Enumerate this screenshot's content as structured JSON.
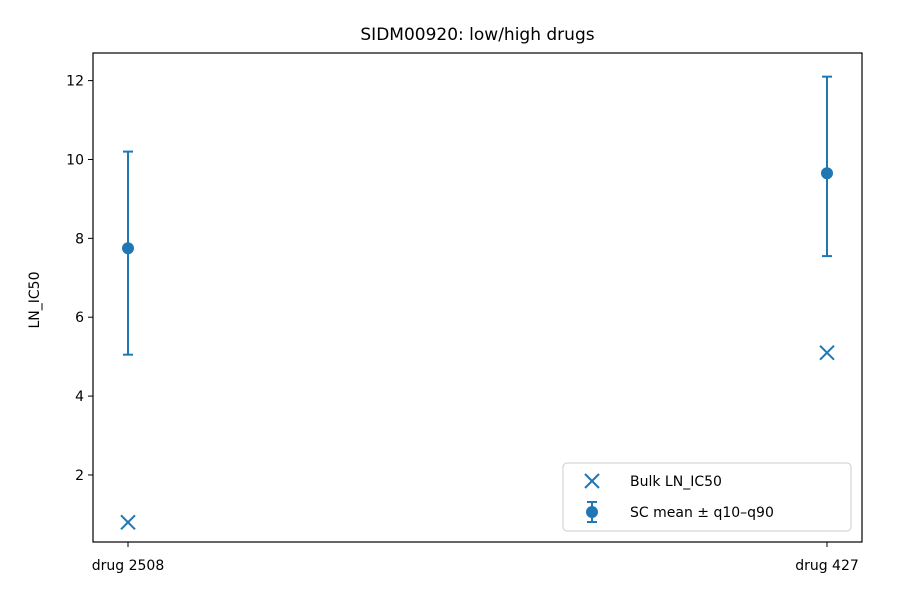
{
  "chart_data": {
    "type": "scatter",
    "title": "SIDM00920: low/high drugs",
    "xlabel": "",
    "ylabel": "LN_IC50",
    "categories": [
      "drug 2508",
      "drug 427"
    ],
    "ylim": [
      0.3,
      12.7
    ],
    "yticks": [
      2,
      4,
      6,
      8,
      10,
      12
    ],
    "grid": false,
    "legend_position": "lower-right",
    "color": "#1f77b4",
    "series": [
      {
        "name": "Bulk LN_IC50",
        "marker": "x",
        "values": [
          0.8,
          5.1
        ]
      },
      {
        "name": "SC mean ± q10–q90",
        "marker": "o",
        "values": [
          7.75,
          9.65
        ],
        "lower": [
          5.05,
          7.55
        ],
        "upper": [
          10.2,
          12.1
        ]
      }
    ]
  }
}
